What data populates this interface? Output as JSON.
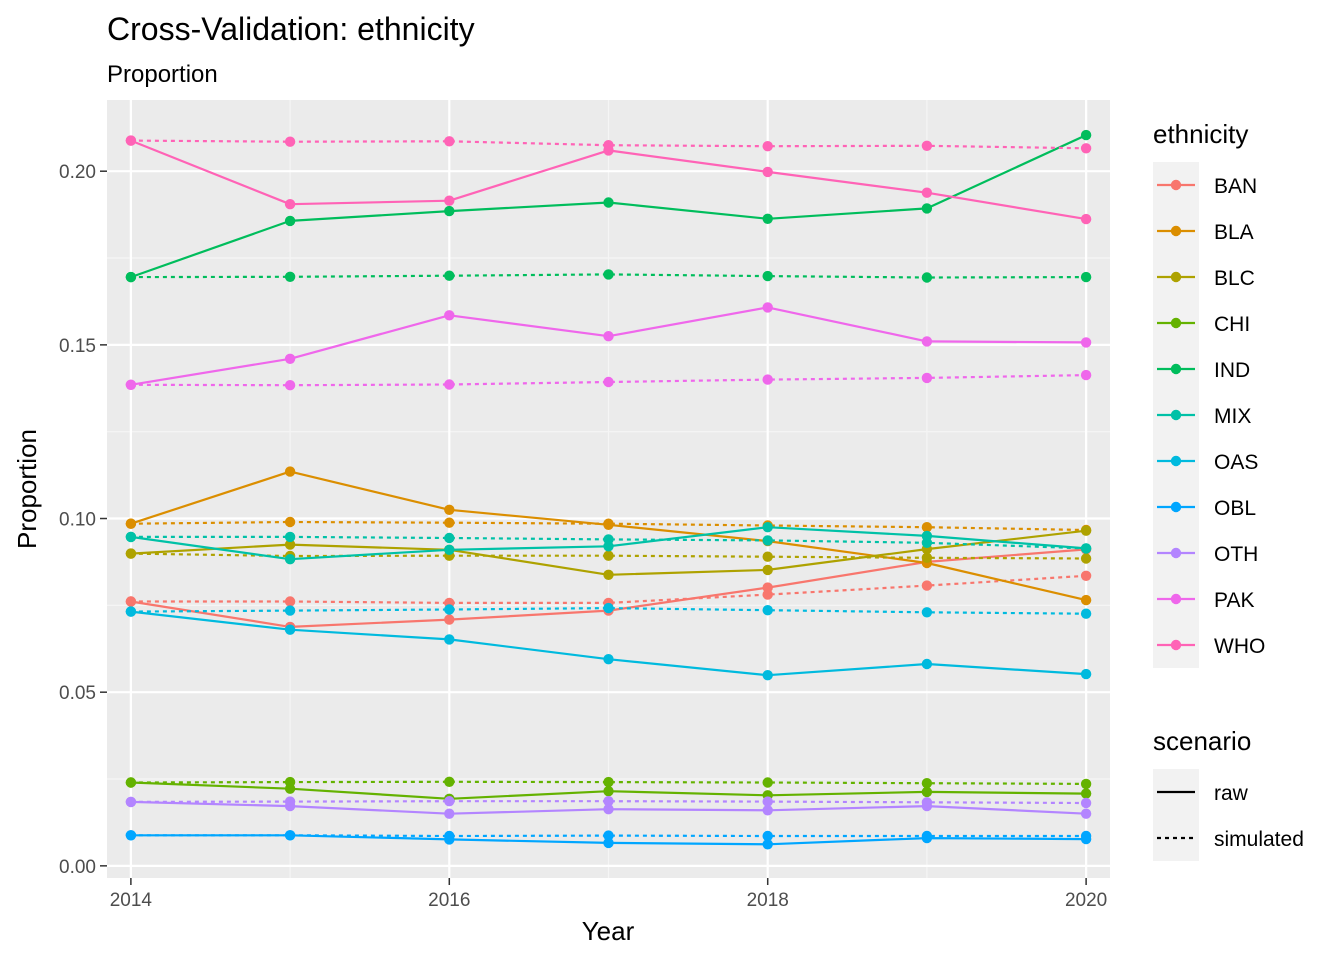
{
  "chart_data": {
    "type": "line",
    "title": "Cross-Validation: ethnicity",
    "subtitle": "Proportion",
    "xlabel": "Year",
    "ylabel": "Proportion",
    "x": [
      2014,
      2015,
      2016,
      2017,
      2018,
      2019,
      2020
    ],
    "xlim": [
      2013.85,
      2020.15
    ],
    "ylim": [
      -0.0035,
      0.2205
    ],
    "x_ticks": [
      "2014",
      "2016",
      "2018",
      "2020"
    ],
    "y_ticks": [
      "0.00",
      "0.05",
      "0.10",
      "0.15",
      "0.20"
    ],
    "grid": true,
    "legend_position": "right",
    "legend_ethnicity_title": "ethnicity",
    "legend_scenario_title": "scenario",
    "scenarios": [
      {
        "name": "raw",
        "linetype": "solid"
      },
      {
        "name": "simulated",
        "linetype": "dotted"
      }
    ],
    "series": [
      {
        "ethnicity": "BAN",
        "color": "#F8766D",
        "raw": [
          0.0761,
          0.0688,
          0.0709,
          0.0735,
          0.0801,
          0.0875,
          0.0911
        ],
        "simulated": [
          0.0761,
          0.0761,
          0.0757,
          0.0757,
          0.0781,
          0.0807,
          0.0835
        ]
      },
      {
        "ethnicity": "BLA",
        "color": "#DB8E00",
        "raw": [
          0.0985,
          0.1135,
          0.1025,
          0.0982,
          0.0935,
          0.0872,
          0.0765
        ],
        "simulated": [
          0.0985,
          0.099,
          0.0988,
          0.0985,
          0.098,
          0.0975,
          0.0967
        ]
      },
      {
        "ethnicity": "BLC",
        "color": "#AEA200",
        "raw": [
          0.0899,
          0.0925,
          0.091,
          0.0838,
          0.0852,
          0.0912,
          0.0965
        ],
        "simulated": [
          0.0899,
          0.0892,
          0.0893,
          0.0893,
          0.089,
          0.0887,
          0.0885
        ]
      },
      {
        "ethnicity": "CHI",
        "color": "#64B200",
        "raw": [
          0.024,
          0.0222,
          0.0193,
          0.0215,
          0.0203,
          0.0213,
          0.0208
        ],
        "simulated": [
          0.024,
          0.0241,
          0.0242,
          0.0241,
          0.024,
          0.0238,
          0.0236
        ]
      },
      {
        "ethnicity": "IND",
        "color": "#00BD5C",
        "raw": [
          0.1695,
          0.1857,
          0.1885,
          0.191,
          0.1863,
          0.1893,
          0.2104
        ],
        "simulated": [
          0.1695,
          0.1696,
          0.1699,
          0.1703,
          0.1698,
          0.1694,
          0.1695
        ]
      },
      {
        "ethnicity": "MIX",
        "color": "#00C1A7",
        "raw": [
          0.0947,
          0.0883,
          0.091,
          0.092,
          0.0975,
          0.095,
          0.0914
        ],
        "simulated": [
          0.0947,
          0.0947,
          0.0944,
          0.094,
          0.0937,
          0.093,
          0.0914
        ]
      },
      {
        "ethnicity": "OAS",
        "color": "#00BADE",
        "raw": [
          0.0732,
          0.068,
          0.0652,
          0.0595,
          0.0549,
          0.0581,
          0.0552
        ],
        "simulated": [
          0.0732,
          0.0735,
          0.0738,
          0.0742,
          0.0736,
          0.073,
          0.0726
        ]
      },
      {
        "ethnicity": "OBL",
        "color": "#00A6FF",
        "raw": [
          0.0088,
          0.0088,
          0.0076,
          0.0066,
          0.0062,
          0.008,
          0.0077
        ],
        "simulated": [
          0.0088,
          0.0088,
          0.0086,
          0.0087,
          0.0086,
          0.0086,
          0.0086
        ]
      },
      {
        "ethnicity": "OTH",
        "color": "#B385FF",
        "raw": [
          0.0184,
          0.0172,
          0.015,
          0.0163,
          0.016,
          0.0172,
          0.015
        ],
        "simulated": [
          0.0184,
          0.0185,
          0.0186,
          0.0186,
          0.0185,
          0.0183,
          0.0181
        ]
      },
      {
        "ethnicity": "PAK",
        "color": "#EF67EB",
        "raw": [
          0.1385,
          0.146,
          0.1585,
          0.1525,
          0.1608,
          0.151,
          0.1507
        ],
        "simulated": [
          0.1385,
          0.1384,
          0.1386,
          0.1393,
          0.14,
          0.1405,
          0.1413
        ]
      },
      {
        "ethnicity": "WHO",
        "color": "#FF63B6",
        "raw": [
          0.2088,
          0.1905,
          0.1915,
          0.206,
          0.1998,
          0.1938,
          0.1862
        ],
        "simulated": [
          0.2088,
          0.2085,
          0.2086,
          0.2075,
          0.2072,
          0.2073,
          0.2066
        ]
      }
    ]
  }
}
